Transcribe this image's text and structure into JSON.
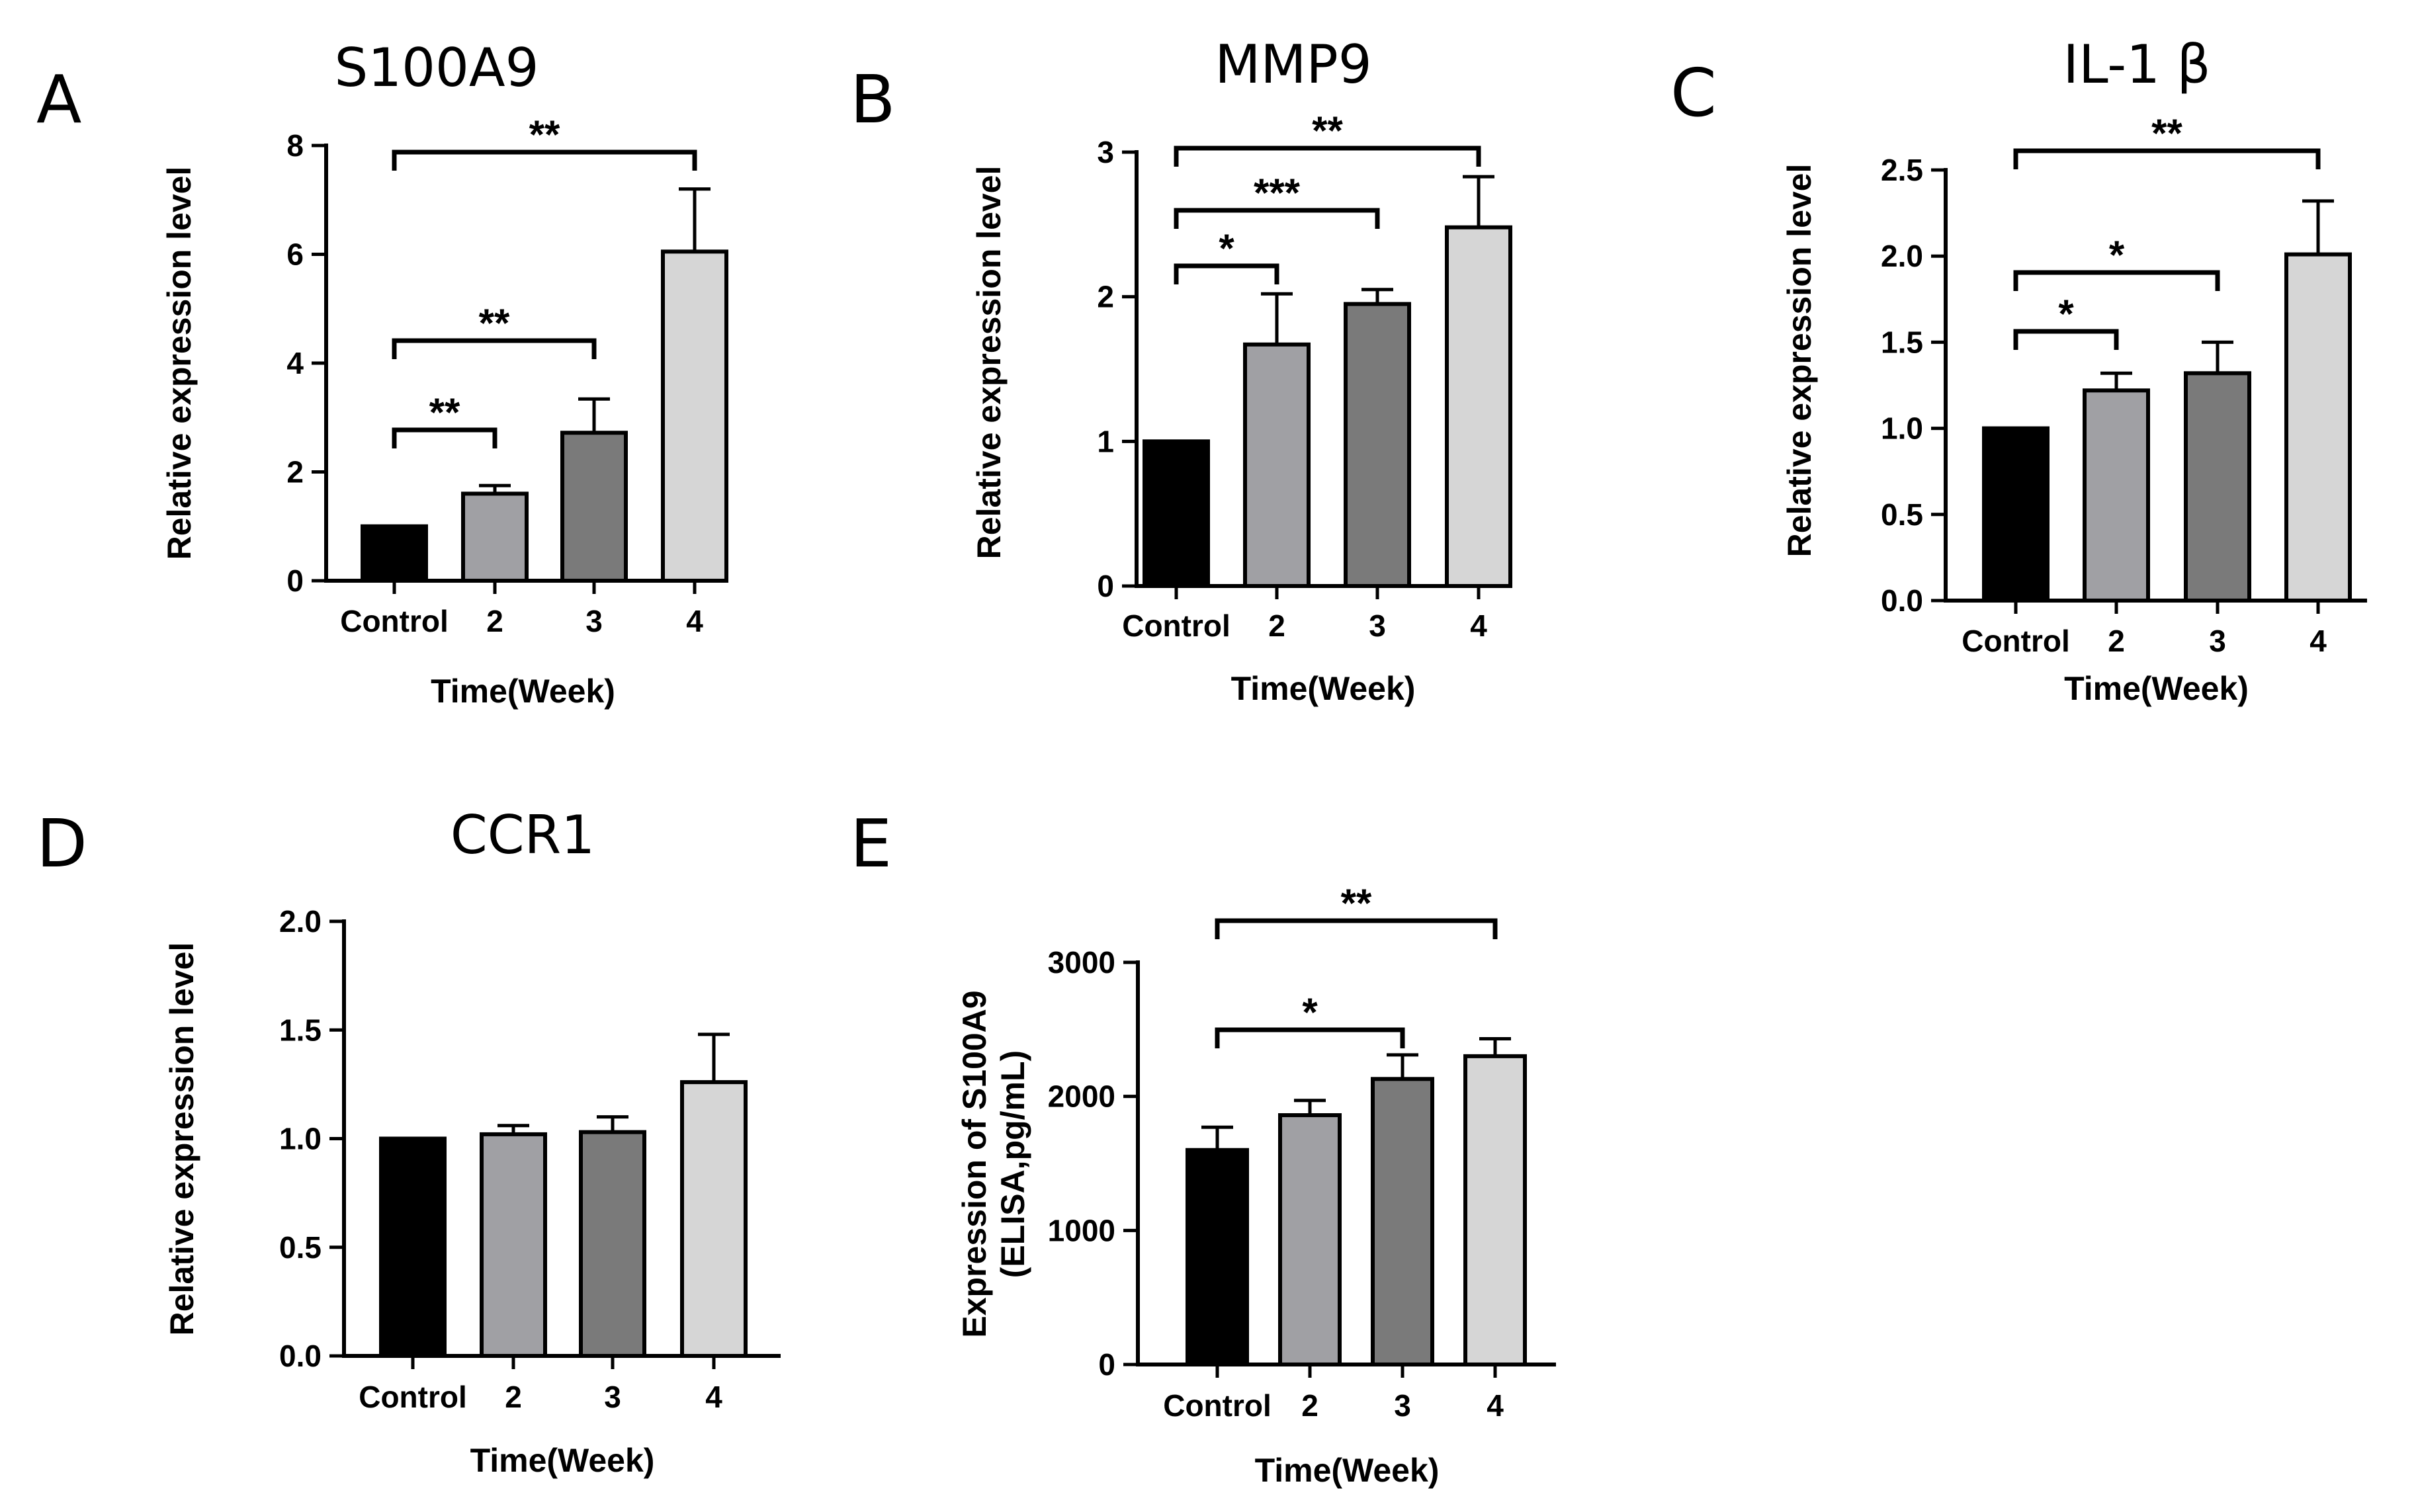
{
  "chart_data": [
    {
      "panel": "A",
      "type": "bar",
      "title": "S100A9",
      "xlabel": "Time(Week)",
      "ylabel": "Relative expression level",
      "categories": [
        "Control",
        "2",
        "3",
        "4"
      ],
      "values": [
        1.0,
        1.6,
        2.72,
        6.05
      ],
      "errors": [
        0,
        0.15,
        0.62,
        1.15
      ],
      "ylim": [
        0,
        8
      ],
      "yticks": [
        "0",
        "2",
        "4",
        "6",
        "8"
      ],
      "colors": [
        "#000000",
        "#a0a0a4",
        "#7a7a7a",
        "#d6d6d6"
      ],
      "significance": [
        {
          "from": 0,
          "to": 1,
          "label": "**"
        },
        {
          "from": 0,
          "to": 2,
          "label": "**"
        },
        {
          "from": 0,
          "to": 3,
          "label": "**"
        }
      ]
    },
    {
      "panel": "B",
      "type": "bar",
      "title": "MMP9",
      "xlabel": "Time(Week)",
      "ylabel": "Relative expression level",
      "categories": [
        "Control",
        "2",
        "3",
        "4"
      ],
      "values": [
        1.0,
        1.67,
        1.95,
        2.48
      ],
      "errors": [
        0,
        0.35,
        0.1,
        0.35
      ],
      "ylim": [
        0,
        3
      ],
      "yticks": [
        "0",
        "1",
        "2",
        "3"
      ],
      "colors": [
        "#000000",
        "#a0a0a4",
        "#7a7a7a",
        "#d6d6d6"
      ],
      "significance": [
        {
          "from": 0,
          "to": 1,
          "label": "*"
        },
        {
          "from": 0,
          "to": 2,
          "label": "***"
        },
        {
          "from": 0,
          "to": 3,
          "label": "**"
        }
      ]
    },
    {
      "panel": "C",
      "type": "bar",
      "title": "IL-1 β",
      "xlabel": "Time(Week)",
      "ylabel": "Relative expression level",
      "categories": [
        "Control",
        "2",
        "3",
        "4"
      ],
      "values": [
        1.0,
        1.22,
        1.32,
        2.01
      ],
      "errors": [
        0,
        0.1,
        0.18,
        0.31
      ],
      "ylim": [
        0,
        2.5
      ],
      "yticks": [
        "0.0",
        "0.5",
        "1.0",
        "1.5",
        "2.0",
        "2.5"
      ],
      "colors": [
        "#000000",
        "#a0a0a4",
        "#7a7a7a",
        "#d6d6d6"
      ],
      "significance": [
        {
          "from": 0,
          "to": 1,
          "label": "*"
        },
        {
          "from": 0,
          "to": 2,
          "label": "*"
        },
        {
          "from": 0,
          "to": 3,
          "label": "**"
        }
      ]
    },
    {
      "panel": "D",
      "type": "bar",
      "title": "CCR1",
      "xlabel": "Time(Week)",
      "ylabel": "Relative expression level",
      "categories": [
        "Control",
        "2",
        "3",
        "4"
      ],
      "values": [
        1.0,
        1.02,
        1.03,
        1.26
      ],
      "errors": [
        0,
        0.04,
        0.07,
        0.22
      ],
      "ylim": [
        0,
        2.0
      ],
      "yticks": [
        "0.0",
        "0.5",
        "1.0",
        "1.5",
        "2.0"
      ],
      "colors": [
        "#000000",
        "#a0a0a4",
        "#7a7a7a",
        "#d6d6d6"
      ],
      "significance": []
    },
    {
      "panel": "E",
      "type": "bar",
      "title": "",
      "xlabel": "Time(Week)",
      "ylabel": [
        "Expression of S100A9",
        "(ELISA,pg/mL)"
      ],
      "categories": [
        "Control",
        "2",
        "3",
        "4"
      ],
      "values": [
        1600,
        1860,
        2130,
        2300
      ],
      "errors": [
        170,
        110,
        180,
        130
      ],
      "ylim": [
        0,
        3000
      ],
      "yticks": [
        "0",
        "1000",
        "2000",
        "3000"
      ],
      "colors": [
        "#000000",
        "#a0a0a4",
        "#7a7a7a",
        "#d6d6d6"
      ],
      "significance": [
        {
          "from": 0,
          "to": 2,
          "label": "*"
        },
        {
          "from": 0,
          "to": 3,
          "label": "**"
        }
      ]
    }
  ]
}
